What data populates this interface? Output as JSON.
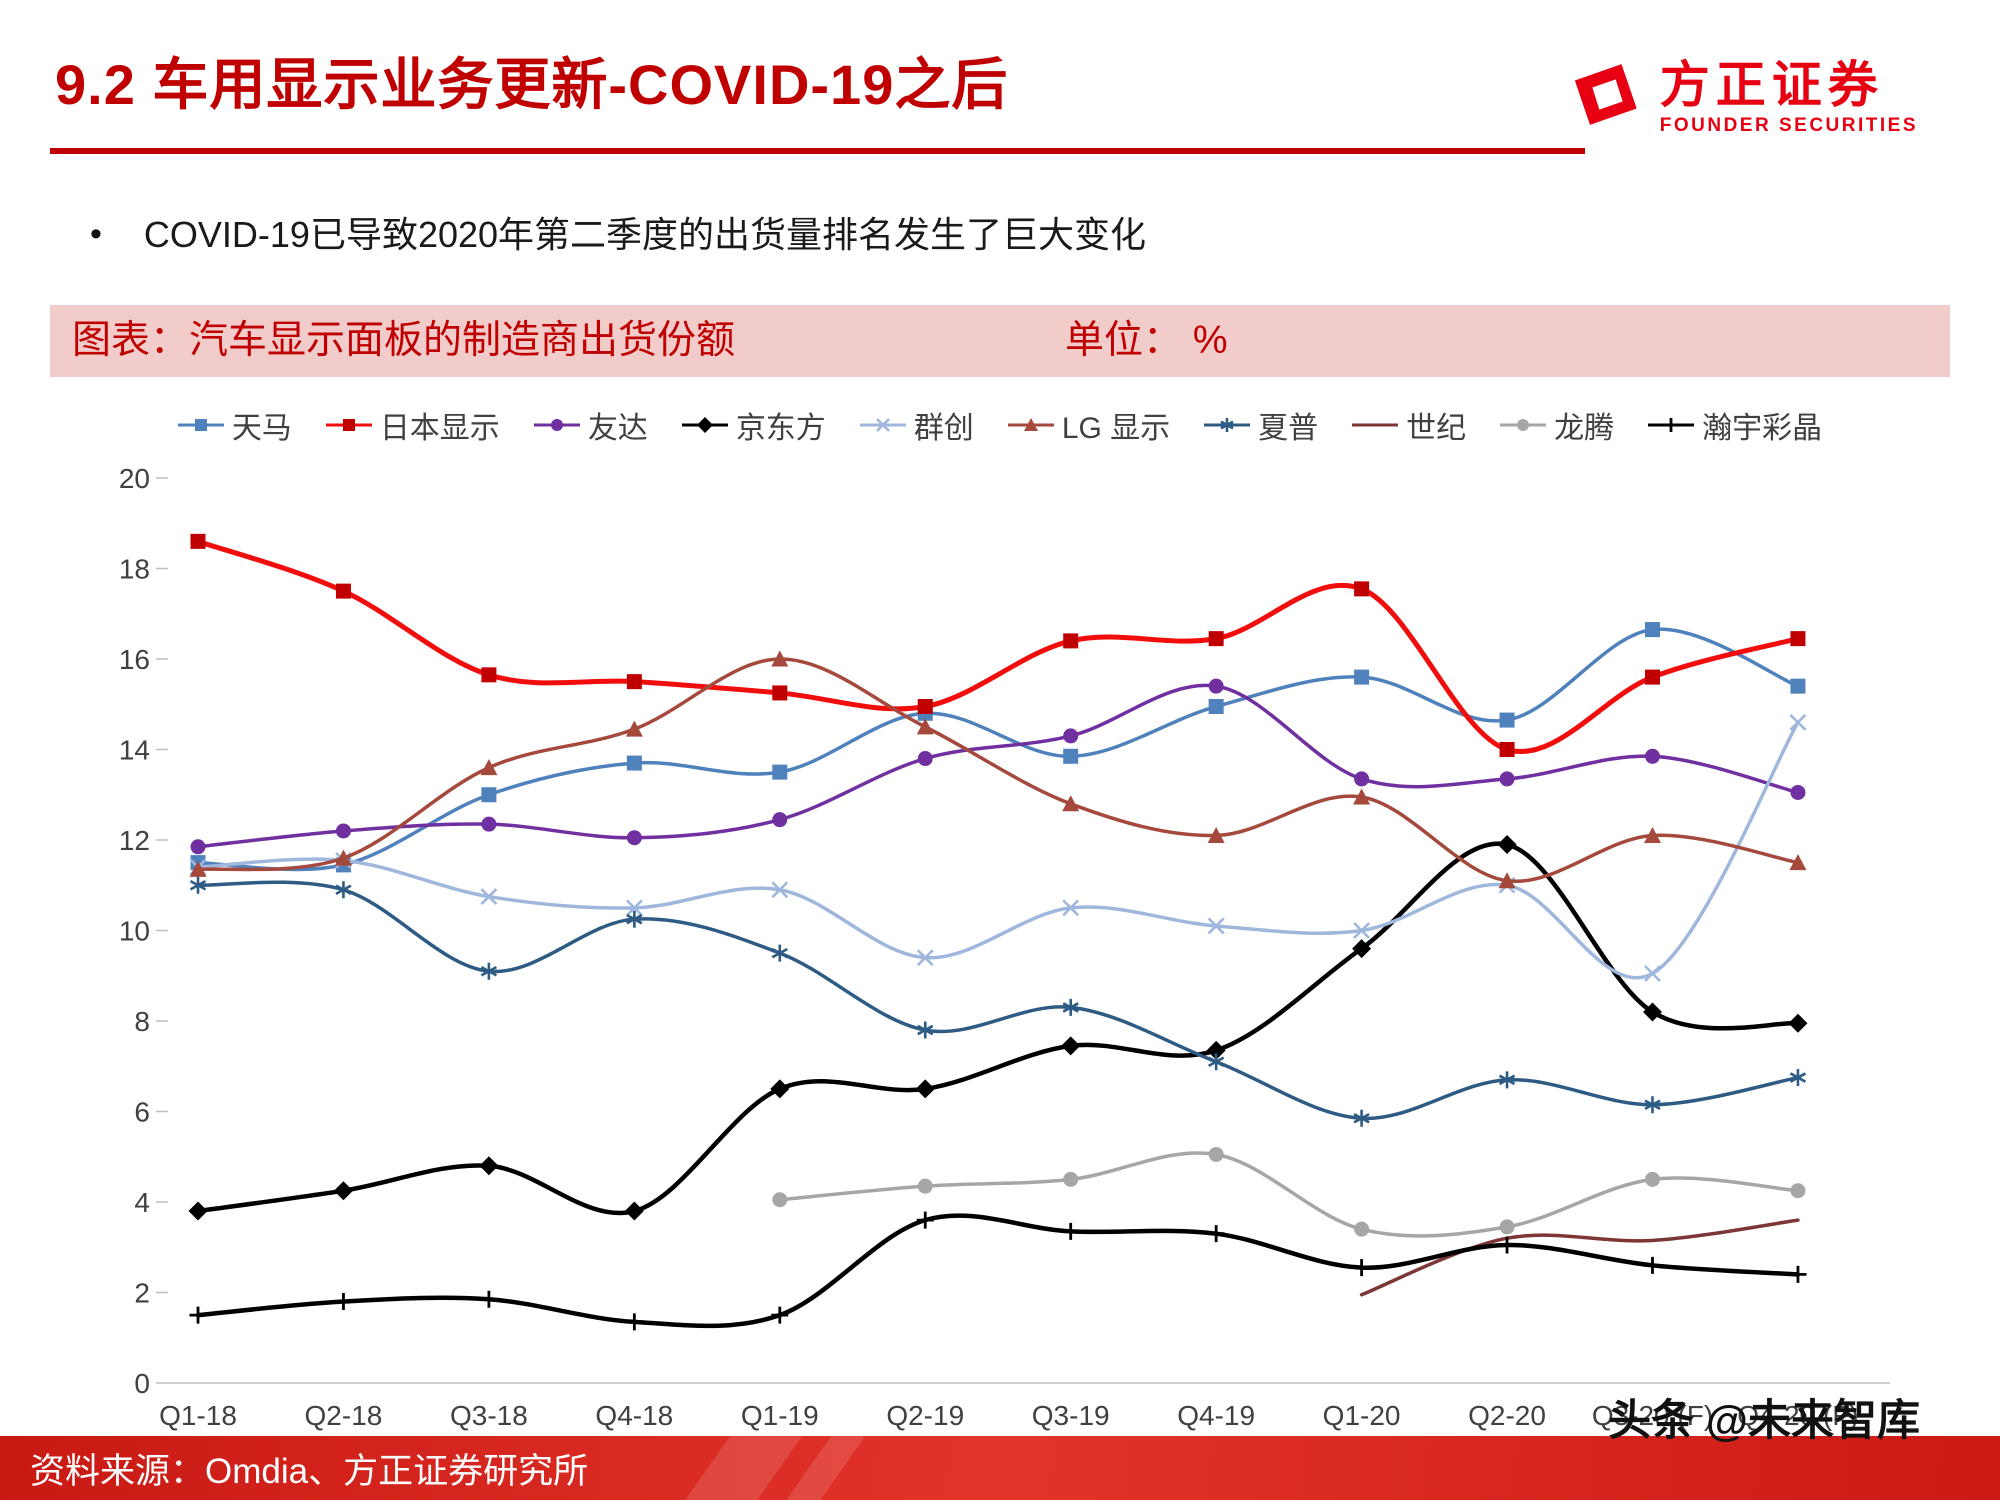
{
  "page": {
    "title": "9.2 车用显示业务更新-COVID-19之后",
    "bullet": "COVID-19已导致2020年第二季度的出货量排名发生了巨大变化",
    "logo": {
      "name": "方正证券",
      "subtitle": "FOUNDER SECURITIES",
      "brand_color": "#E60012"
    },
    "chart_header": {
      "left": "图表：汽车显示面板的制造商出货份额",
      "unit": "单位： %"
    },
    "watermark": "头条 @未来智库",
    "footer_source": "资料来源：Omdia、方正证券研究所",
    "accent_color": "#C00000"
  },
  "chart_data": {
    "type": "line",
    "title": "汽车显示面板的制造商出货份额",
    "unit": "%",
    "legend_position": "top",
    "grid": false,
    "ylim": [
      0,
      20
    ],
    "ytick_step": 2,
    "categories": [
      "Q1-18",
      "Q2-18",
      "Q3-18",
      "Q4-18",
      "Q1-19",
      "Q2-19",
      "Q3-19",
      "Q4-19",
      "Q1-20",
      "Q2-20",
      "Q3-20 (F)",
      "Q4-20 (F)"
    ],
    "series": [
      {
        "id": "tianma",
        "name": "天马",
        "color": "#4F81BD",
        "marker": "square",
        "width": 3.5,
        "values": [
          11.5,
          11.45,
          13.0,
          13.7,
          13.5,
          14.8,
          13.85,
          14.95,
          15.6,
          14.65,
          16.65,
          15.4
        ]
      },
      {
        "id": "jdi",
        "name": "日本显示",
        "color": "#F20D0D",
        "marker": "square",
        "marker_color": "#C00000",
        "width": 5,
        "values": [
          18.6,
          17.5,
          15.65,
          15.5,
          15.25,
          14.95,
          16.4,
          16.45,
          17.55,
          14.0,
          15.6,
          16.45
        ]
      },
      {
        "id": "auo",
        "name": "友达",
        "color": "#7030A0",
        "marker": "circle",
        "width": 3.5,
        "values": [
          11.85,
          12.2,
          12.35,
          12.05,
          12.45,
          13.8,
          14.3,
          15.4,
          13.35,
          13.35,
          13.85,
          13.05
        ]
      },
      {
        "id": "boe",
        "name": "京东方",
        "color": "#000000",
        "marker": "diamond",
        "width": 4.5,
        "values": [
          3.8,
          4.25,
          4.8,
          3.8,
          6.5,
          6.5,
          7.45,
          7.35,
          9.6,
          11.9,
          8.2,
          7.95
        ]
      },
      {
        "id": "innolux",
        "name": "群创",
        "color": "#9FB7DC",
        "marker": "x",
        "width": 3.5,
        "values": [
          11.4,
          11.55,
          10.75,
          10.5,
          10.9,
          9.4,
          10.5,
          10.1,
          10.0,
          11.0,
          9.05,
          14.6
        ]
      },
      {
        "id": "lgd",
        "name": "LG 显示",
        "color": "#A5493D",
        "marker": "triangle",
        "width": 3.5,
        "values": [
          11.35,
          11.6,
          13.6,
          14.45,
          16.0,
          14.5,
          12.8,
          12.1,
          12.95,
          11.1,
          12.1,
          11.5
        ]
      },
      {
        "id": "sharp",
        "name": "夏普",
        "color": "#2E5B84",
        "marker": "asterisk",
        "width": 3.5,
        "values": [
          11.0,
          10.9,
          9.1,
          10.25,
          9.5,
          7.8,
          8.3,
          7.1,
          5.85,
          6.7,
          6.15,
          6.75
        ]
      },
      {
        "id": "century",
        "name": "世纪",
        "color": "#7D3636",
        "marker": "none",
        "width": 3.5,
        "values": [
          null,
          null,
          null,
          null,
          null,
          null,
          null,
          null,
          1.95,
          3.2,
          3.15,
          3.6
        ]
      },
      {
        "id": "longteng",
        "name": "龙腾",
        "color": "#A6A6A6",
        "marker": "circle",
        "width": 3.5,
        "values": [
          null,
          null,
          null,
          null,
          4.05,
          4.35,
          4.5,
          5.05,
          3.4,
          3.45,
          4.5,
          4.25
        ]
      },
      {
        "id": "hannstar",
        "name": "瀚宇彩晶",
        "color": "#000000",
        "marker": "plus",
        "width": 4.5,
        "values": [
          1.5,
          1.8,
          1.85,
          1.35,
          1.5,
          3.6,
          3.35,
          3.3,
          2.55,
          3.05,
          2.6,
          2.4
        ]
      }
    ]
  }
}
